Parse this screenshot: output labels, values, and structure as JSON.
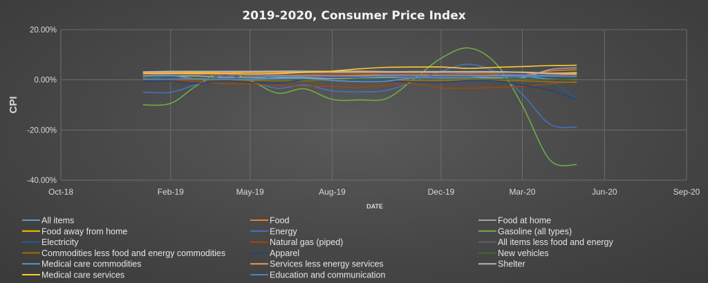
{
  "chart_data": {
    "type": "line",
    "title": "2019-2020, Consumer Price Index",
    "xlabel": "DATE",
    "ylabel": "CPI",
    "ylim": [
      -40,
      20
    ],
    "yticks": [
      20,
      0,
      -20,
      -40
    ],
    "ytick_labels": [
      "20.00%",
      "0.00%",
      "-20.00%",
      "-40.00%"
    ],
    "xlim": [
      "2018-10-01",
      "2020-09-01"
    ],
    "xticks": [
      "2018-10-01",
      "2019-02-01",
      "2019-05-01",
      "2019-08-01",
      "2019-12-01",
      "2020-03-01",
      "2020-06-01",
      "2020-09-01"
    ],
    "xtick_labels": [
      "Oct-18",
      "Feb-19",
      "May-19",
      "Aug-19",
      "Dec-19",
      "Mar-20",
      "Jun-20",
      "Sep-20"
    ],
    "grid": true,
    "legend_position": "bottom",
    "x": [
      "2019-01-01",
      "2019-02-01",
      "2019-03-01",
      "2019-04-01",
      "2019-05-01",
      "2019-06-01",
      "2019-07-01",
      "2019-08-01",
      "2019-09-01",
      "2019-10-01",
      "2019-11-01",
      "2019-12-01",
      "2020-01-01",
      "2020-02-01",
      "2020-03-01",
      "2020-04-01",
      "2020-05-01"
    ],
    "series": [
      {
        "name": "All items",
        "color": "#5b9bd5",
        "values": [
          1.6,
          1.5,
          1.9,
          2.0,
          1.8,
          1.6,
          1.8,
          1.7,
          1.7,
          1.8,
          2.1,
          2.3,
          2.5,
          2.3,
          1.5,
          0.3,
          0.1
        ]
      },
      {
        "name": "Food",
        "color": "#ed7d31",
        "values": [
          1.6,
          2.0,
          2.1,
          1.9,
          2.0,
          1.9,
          1.9,
          1.7,
          1.8,
          2.1,
          2.0,
          1.8,
          1.8,
          1.8,
          1.9,
          3.5,
          4.0
        ]
      },
      {
        "name": "Food at home",
        "color": "#a5a5a5",
        "values": [
          0.9,
          1.3,
          1.5,
          1.0,
          1.1,
          0.9,
          0.9,
          0.5,
          0.6,
          0.9,
          0.7,
          0.7,
          0.7,
          0.8,
          0.8,
          4.1,
          4.8
        ]
      },
      {
        "name": "Food away from home",
        "color": "#ffc000",
        "values": [
          3.1,
          3.1,
          3.1,
          3.1,
          3.1,
          3.1,
          3.1,
          3.1,
          3.3,
          3.2,
          3.3,
          3.1,
          3.1,
          3.0,
          3.1,
          2.7,
          2.9
        ]
      },
      {
        "name": "Energy",
        "color": "#4472c4",
        "values": [
          -4.9,
          -5.0,
          -1.9,
          1.7,
          -0.5,
          -3.4,
          -2.0,
          -4.4,
          -4.8,
          -4.2,
          -0.6,
          3.4,
          6.2,
          2.8,
          -5.7,
          -17.7,
          -18.9
        ]
      },
      {
        "name": "Gasoline (all types)",
        "color": "#70ad47",
        "values": [
          -10.0,
          -9.4,
          -2.6,
          3.3,
          -0.2,
          -5.3,
          -3.6,
          -7.8,
          -8.0,
          -7.4,
          0.4,
          8.6,
          12.7,
          6.3,
          -10.2,
          -32.0,
          -33.8
        ]
      },
      {
        "name": "Electricity",
        "color": "#255e91",
        "values": [
          1.1,
          1.2,
          0.8,
          0.3,
          0.6,
          0.4,
          0.3,
          0.1,
          0.4,
          0.5,
          0.6,
          0.8,
          0.5,
          0.3,
          0.5,
          -0.8,
          -7.5
        ]
      },
      {
        "name": "Natural gas (piped)",
        "color": "#9e480e",
        "values": [
          0.3,
          0.0,
          -0.6,
          -1.5,
          -1.6,
          -2.3,
          -2.5,
          -2.6,
          -3.0,
          -2.1,
          -1.6,
          -3.2,
          -3.4,
          -3.0,
          -2.7,
          -1.5,
          -0.7
        ]
      },
      {
        "name": "All items less food and energy",
        "color": "#636363",
        "values": [
          2.2,
          2.1,
          2.0,
          2.1,
          2.0,
          2.1,
          2.2,
          2.4,
          2.4,
          2.3,
          2.3,
          2.3,
          2.3,
          2.4,
          2.1,
          1.4,
          1.2
        ]
      },
      {
        "name": "Commodities less food and energy commodities",
        "color": "#997300",
        "values": [
          0.3,
          0.3,
          0.1,
          0.0,
          -0.2,
          -0.3,
          -0.4,
          0.0,
          0.1,
          -0.1,
          -0.3,
          -0.3,
          0.0,
          -0.1,
          -0.4,
          -0.8,
          -1.0
        ]
      },
      {
        "name": "Apparel",
        "color": "#264478",
        "values": [
          -0.8,
          -0.5,
          -1.5,
          -0.4,
          -1.0,
          -1.3,
          0.0,
          0.0,
          -0.5,
          -0.4,
          -0.8,
          -1.0,
          -0.3,
          -0.5,
          -2.1,
          -4.2,
          -7.9
        ]
      },
      {
        "name": "New vehicles",
        "color": "#43682b",
        "values": [
          1.0,
          0.4,
          0.9,
          0.3,
          0.4,
          0.0,
          0.1,
          -0.1,
          0.1,
          0.0,
          0.6,
          0.4,
          0.4,
          0.2,
          0.4,
          0.1,
          0.3
        ]
      },
      {
        "name": "Medical care commodities",
        "color": "#698ed0",
        "values": [
          1.4,
          1.7,
          0.4,
          0.3,
          0.3,
          0.5,
          0.6,
          -0.2,
          -0.7,
          -0.5,
          0.8,
          0.8,
          0.8,
          1.5,
          1.8,
          1.7,
          1.4
        ]
      },
      {
        "name": "Services less energy services",
        "color": "#f1975a",
        "values": [
          2.9,
          2.9,
          2.8,
          2.9,
          2.9,
          3.0,
          3.0,
          3.0,
          3.0,
          3.0,
          3.0,
          3.0,
          3.1,
          3.1,
          2.9,
          2.4,
          2.1
        ]
      },
      {
        "name": "Shelter",
        "color": "#b7b7b7",
        "values": [
          3.2,
          3.4,
          3.4,
          3.4,
          3.4,
          3.5,
          3.5,
          3.4,
          3.5,
          3.3,
          3.3,
          3.3,
          3.3,
          3.3,
          3.0,
          2.6,
          2.5
        ]
      },
      {
        "name": "Medical care services",
        "color": "#ffcd33",
        "values": [
          2.5,
          2.5,
          2.5,
          2.5,
          2.3,
          2.5,
          3.0,
          3.5,
          4.4,
          5.0,
          5.1,
          5.1,
          4.6,
          5.0,
          5.3,
          5.7,
          5.8
        ]
      },
      {
        "name": "Education and communication",
        "color": "#4d82c3",
        "values": [
          0.2,
          0.3,
          0.5,
          0.2,
          0.4,
          1.2,
          1.4,
          1.4,
          1.3,
          1.5,
          1.5,
          1.5,
          1.5,
          1.4,
          1.3,
          1.4,
          1.4
        ]
      }
    ]
  }
}
